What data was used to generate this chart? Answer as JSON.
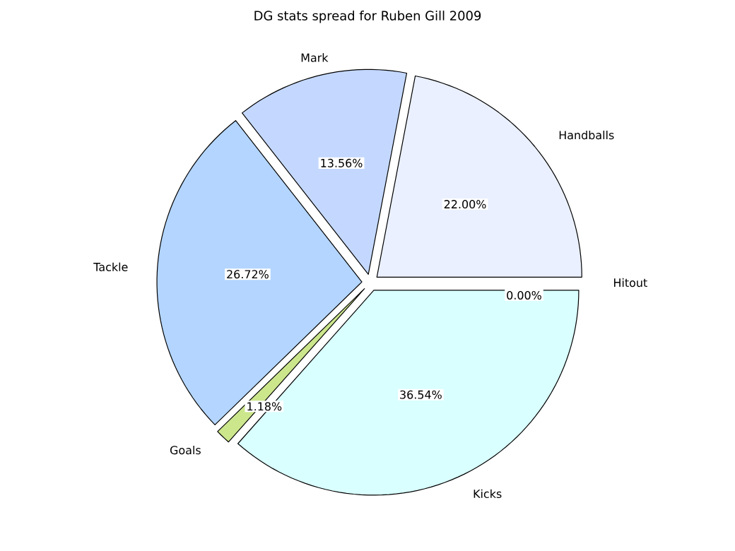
{
  "chart_data": {
    "type": "pie",
    "title": "DG stats spread for Ruben Gill 2009",
    "categories": [
      "Hitout",
      "Handballs",
      "Mark",
      "Tackle",
      "Goals",
      "Kicks"
    ],
    "values": [
      0.0,
      22.0,
      13.56,
      26.72,
      1.18,
      36.54
    ],
    "value_labels": [
      "0.00%",
      "22.00%",
      "13.56%",
      "26.72%",
      "1.18%",
      "36.54%"
    ],
    "colors": [
      "#d0d0d0",
      "#eaf0ff",
      "#c4d8ff",
      "#b3d5ff",
      "#cce68c",
      "#d9ffff"
    ]
  }
}
